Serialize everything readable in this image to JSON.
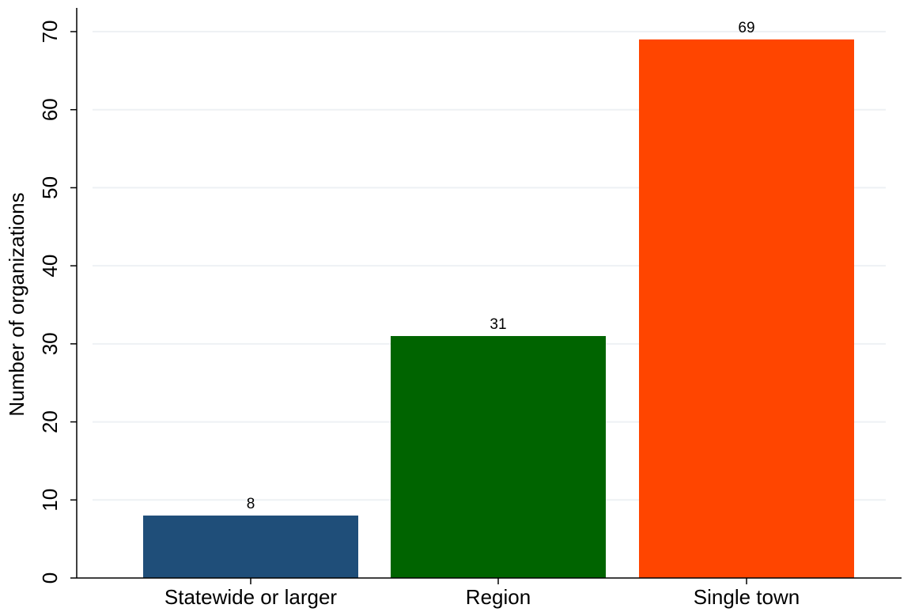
{
  "chart_data": {
    "type": "bar",
    "title": "",
    "xlabel": "",
    "ylabel": "Number of organizations",
    "ylim": [
      0,
      70
    ],
    "yticks": [
      0,
      10,
      20,
      30,
      40,
      50,
      60,
      70
    ],
    "grid": true,
    "categories": [
      "Statewide or larger",
      "Region",
      "Single town"
    ],
    "values": [
      8,
      31,
      69
    ],
    "data_labels": [
      "8",
      "31",
      "69"
    ],
    "colors": [
      "#1f4e79",
      "#006400",
      "#ff4500"
    ]
  }
}
